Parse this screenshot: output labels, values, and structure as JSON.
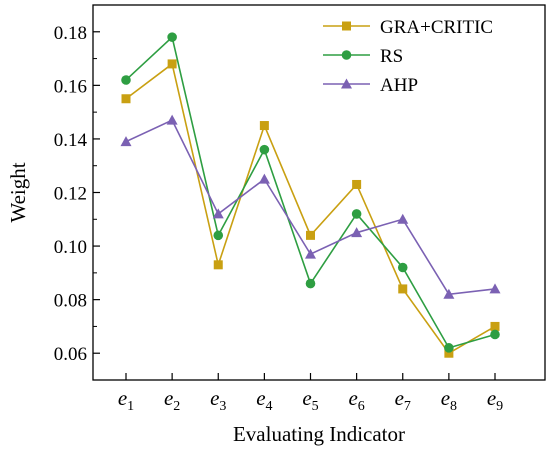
{
  "chart_data": {
    "type": "line",
    "xlabel": "Evaluating Indicator",
    "ylabel": "Weight",
    "ylim": [
      0.05,
      0.19
    ],
    "yticks": [
      0.06,
      0.08,
      0.1,
      0.12,
      0.14,
      0.16,
      0.18
    ],
    "ytick_labels": [
      "0.06",
      "0.08",
      "0.10",
      "0.12",
      "0.14",
      "0.16",
      "0.18"
    ],
    "categories": [
      {
        "base": "e",
        "sub": "1"
      },
      {
        "base": "e",
        "sub": "2"
      },
      {
        "base": "e",
        "sub": "3"
      },
      {
        "base": "e",
        "sub": "4"
      },
      {
        "base": "e",
        "sub": "5"
      },
      {
        "base": "e",
        "sub": "6"
      },
      {
        "base": "e",
        "sub": "7"
      },
      {
        "base": "e",
        "sub": "8"
      },
      {
        "base": "e",
        "sub": "9"
      }
    ],
    "legend_position": "top-right",
    "grid": false,
    "series": [
      {
        "name": "GRA+CRITIC",
        "color": "#C9A012",
        "marker": "square",
        "values": [
          0.155,
          0.168,
          0.093,
          0.145,
          0.104,
          0.123,
          0.084,
          0.06,
          0.07
        ]
      },
      {
        "name": "RS",
        "color": "#2E9E42",
        "marker": "circle",
        "values": [
          0.162,
          0.178,
          0.104,
          0.136,
          0.086,
          0.112,
          0.092,
          0.062,
          0.067
        ]
      },
      {
        "name": "AHP",
        "color": "#7B61B3",
        "marker": "triangle",
        "values": [
          0.139,
          0.147,
          0.112,
          0.125,
          0.097,
          0.105,
          0.11,
          0.082,
          0.084
        ]
      }
    ]
  }
}
